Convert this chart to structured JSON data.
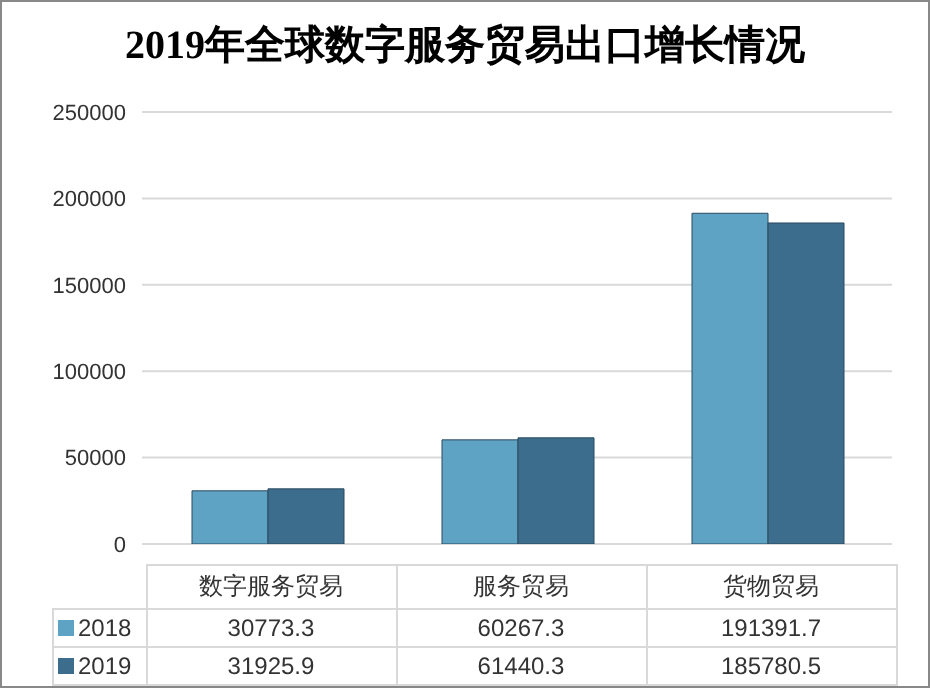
{
  "chart_data": {
    "type": "bar",
    "title": "2019年全球数字服务贸易出口增长情况",
    "categories": [
      "数字服务贸易",
      "服务贸易",
      "货物贸易"
    ],
    "series": [
      {
        "name": "2018",
        "color": "#5fa3c4",
        "values": [
          30773.3,
          60267.3,
          191391.7
        ]
      },
      {
        "name": "2019",
        "color": "#3d6d8c",
        "values": [
          31925.9,
          61440.3,
          185780.5
        ]
      }
    ],
    "ylim": [
      0,
      250000
    ],
    "yticks": [
      0,
      50000,
      100000,
      150000,
      200000,
      250000
    ],
    "grid": "y",
    "legend": "bottom",
    "data_labels": true
  }
}
